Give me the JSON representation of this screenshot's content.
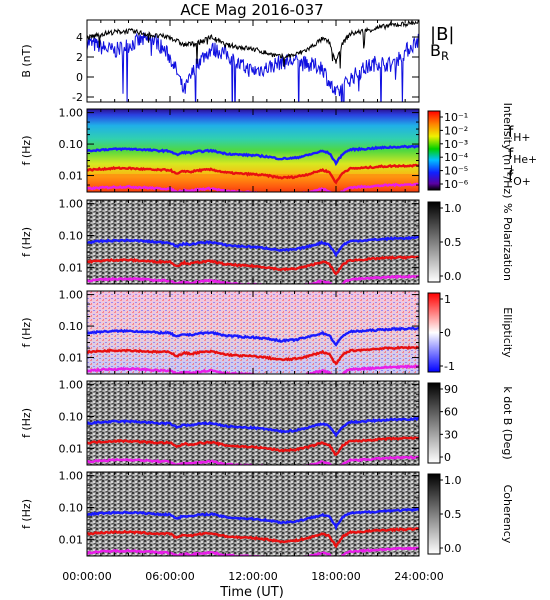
{
  "chart_data": {
    "type": "line",
    "title": "ACE Mag 2016-037",
    "xlabel": "Time (UT)",
    "xticks": [
      "00:00:00",
      "06:00:00",
      "12:00:00",
      "18:00:00",
      "24:00:00"
    ],
    "xlim": [
      0,
      24
    ],
    "colors": {
      "B": "#000000",
      "BR": "#1010e0",
      "fH": "#1a1aff",
      "fHe": "#e81010",
      "fO": "#e81ee8"
    },
    "panels": [
      {
        "id": "mag",
        "ylabel": "B (nT)",
        "ylim": [
          -2.5,
          5.7
        ],
        "yticks": [
          "-2",
          "0",
          "2",
          "4"
        ],
        "yvalues": [
          -2,
          0,
          2,
          4
        ],
        "legend": [
          "|B|",
          "B_R"
        ],
        "series": [
          {
            "name": "|B|",
            "x": [
              0,
              1,
              2,
              3,
              4,
              5,
              6,
              7,
              8,
              9,
              10,
              11,
              12,
              13,
              14,
              15,
              16,
              17,
              17.5,
              18,
              18.5,
              19,
              20,
              21,
              22,
              23,
              24
            ],
            "values": [
              3.9,
              4.3,
              4.5,
              4.6,
              4.4,
              4.1,
              4.0,
              3.2,
              3.4,
              4.0,
              3.2,
              3.0,
              2.8,
              2.4,
              2.0,
              2.2,
              2.8,
              3.8,
              3.5,
              1.5,
              3.4,
              4.3,
              4.6,
              4.9,
              5.2,
              5.3,
              5.5
            ]
          },
          {
            "name": "B_R",
            "x": [
              0,
              1,
              2,
              3,
              4,
              5,
              6,
              6.5,
              7,
              7.5,
              8,
              9,
              10,
              11,
              12,
              13,
              14,
              15,
              16,
              17,
              17.5,
              18,
              18.5,
              19,
              20,
              21,
              22,
              23,
              24
            ],
            "values": [
              3.5,
              3.0,
              2.6,
              3.2,
              3.7,
              3.6,
              2.0,
              0.5,
              -1.5,
              0.0,
              1.5,
              2.8,
              2.4,
              1.2,
              0.6,
              0.9,
              1.5,
              1.6,
              1.2,
              1.0,
              -0.5,
              -1.8,
              -1.0,
              -0.2,
              0.8,
              1.5,
              1.2,
              2.5,
              3.8
            ]
          }
        ]
      },
      {
        "id": "intensity",
        "ylabel": "f (Hz)",
        "cbar_label": "Intensity (nT²/Hz)",
        "cbar_type": "rainbow",
        "cbar_ticks": [
          "10⁻¹",
          "10⁻²",
          "10⁻³",
          "10⁻⁴",
          "10⁻⁵",
          "10⁻⁶"
        ]
      },
      {
        "id": "polarization",
        "ylabel": "f (Hz)",
        "cbar_label": "% Polarization",
        "cbar_type": "gray",
        "cbar_ticks": [
          "1.0",
          "0.5",
          "0.0"
        ]
      },
      {
        "id": "ellipticity",
        "ylabel": "f (Hz)",
        "cbar_label": "Ellipticity",
        "cbar_type": "bwr",
        "cbar_ticks": [
          "1",
          "0",
          "-1"
        ]
      },
      {
        "id": "kdotb",
        "ylabel": "f (Hz)",
        "cbar_label": "k dot B (Deg)",
        "cbar_type": "gray",
        "cbar_ticks": [
          "90",
          "60",
          "30",
          "0"
        ]
      },
      {
        "id": "coherency",
        "ylabel": "f (Hz)",
        "cbar_label": "Coherency",
        "cbar_type": "gray",
        "cbar_ticks": [
          "1.0",
          "0.5",
          "0.0"
        ]
      }
    ],
    "freq_axis": {
      "scale": "log",
      "ylim": [
        0.003,
        1.3
      ],
      "yticks": [
        "1.00",
        "0.10",
        "0.01"
      ],
      "yvalues": [
        1.0,
        0.1,
        0.01
      ]
    },
    "gyrofrequency_legend": [
      "f_H+",
      "f_He+",
      "f_O+"
    ],
    "gyrofrequencies": {
      "x": [
        0,
        1,
        2,
        3,
        4,
        5,
        6,
        6.5,
        7,
        7.5,
        8,
        9,
        10,
        11,
        12,
        13,
        14,
        15,
        16,
        17,
        17.5,
        18,
        18.5,
        19,
        20,
        21,
        22,
        23,
        24
      ],
      "fH": [
        0.06,
        0.066,
        0.069,
        0.07,
        0.067,
        0.062,
        0.06,
        0.045,
        0.055,
        0.052,
        0.058,
        0.062,
        0.05,
        0.046,
        0.044,
        0.04,
        0.034,
        0.036,
        0.045,
        0.06,
        0.052,
        0.025,
        0.05,
        0.066,
        0.07,
        0.075,
        0.08,
        0.082,
        0.085
      ],
      "fHe": [
        0.015,
        0.016,
        0.017,
        0.017,
        0.016,
        0.015,
        0.015,
        0.011,
        0.014,
        0.013,
        0.0145,
        0.0155,
        0.0125,
        0.0115,
        0.011,
        0.01,
        0.0085,
        0.009,
        0.011,
        0.015,
        0.013,
        0.006,
        0.0125,
        0.0165,
        0.0175,
        0.019,
        0.02,
        0.0205,
        0.021
      ],
      "fO": [
        0.0038,
        0.0041,
        0.0043,
        0.0044,
        0.0042,
        0.0039,
        0.0038,
        0.003,
        0.0035,
        0.0033,
        0.0036,
        0.0039,
        0.0032,
        0.003,
        0.0029,
        0.0027,
        0.0024,
        0.0025,
        0.0029,
        0.0038,
        0.0033,
        0.0022,
        0.0032,
        0.0042,
        0.0044,
        0.0047,
        0.005,
        0.0051,
        0.0053
      ]
    }
  }
}
